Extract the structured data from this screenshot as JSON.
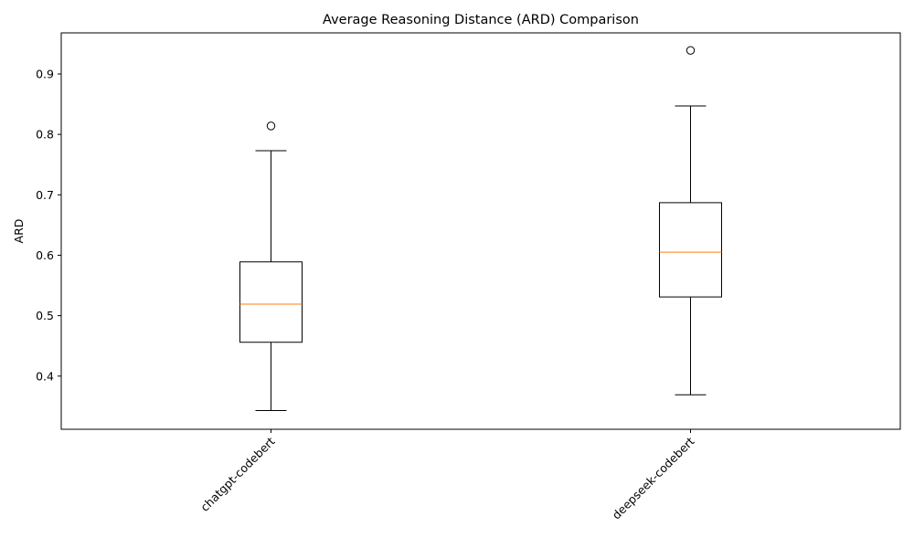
{
  "chart_data": {
    "type": "box",
    "title": "Average Reasoning Distance (ARD) Comparison",
    "xlabel": "",
    "ylabel": "ARD",
    "ylim": [
      0.312,
      0.968
    ],
    "yticks": [
      0.4,
      0.5,
      0.6,
      0.7,
      0.8,
      0.9
    ],
    "grid": false,
    "categories": [
      "chatgpt-codebert",
      "deepseek-codebert"
    ],
    "boxes": [
      {
        "category": "chatgpt-codebert",
        "whisker_low": 0.343,
        "q1": 0.456,
        "median": 0.519,
        "q3": 0.589,
        "whisker_high": 0.773,
        "outliers": [
          0.814
        ]
      },
      {
        "category": "deepseek-codebert",
        "whisker_low": 0.369,
        "q1": 0.531,
        "median": 0.605,
        "q3": 0.687,
        "whisker_high": 0.847,
        "outliers": [
          0.939
        ]
      }
    ],
    "colors": {
      "box": "#000000",
      "median": "#ff7f0e"
    }
  }
}
